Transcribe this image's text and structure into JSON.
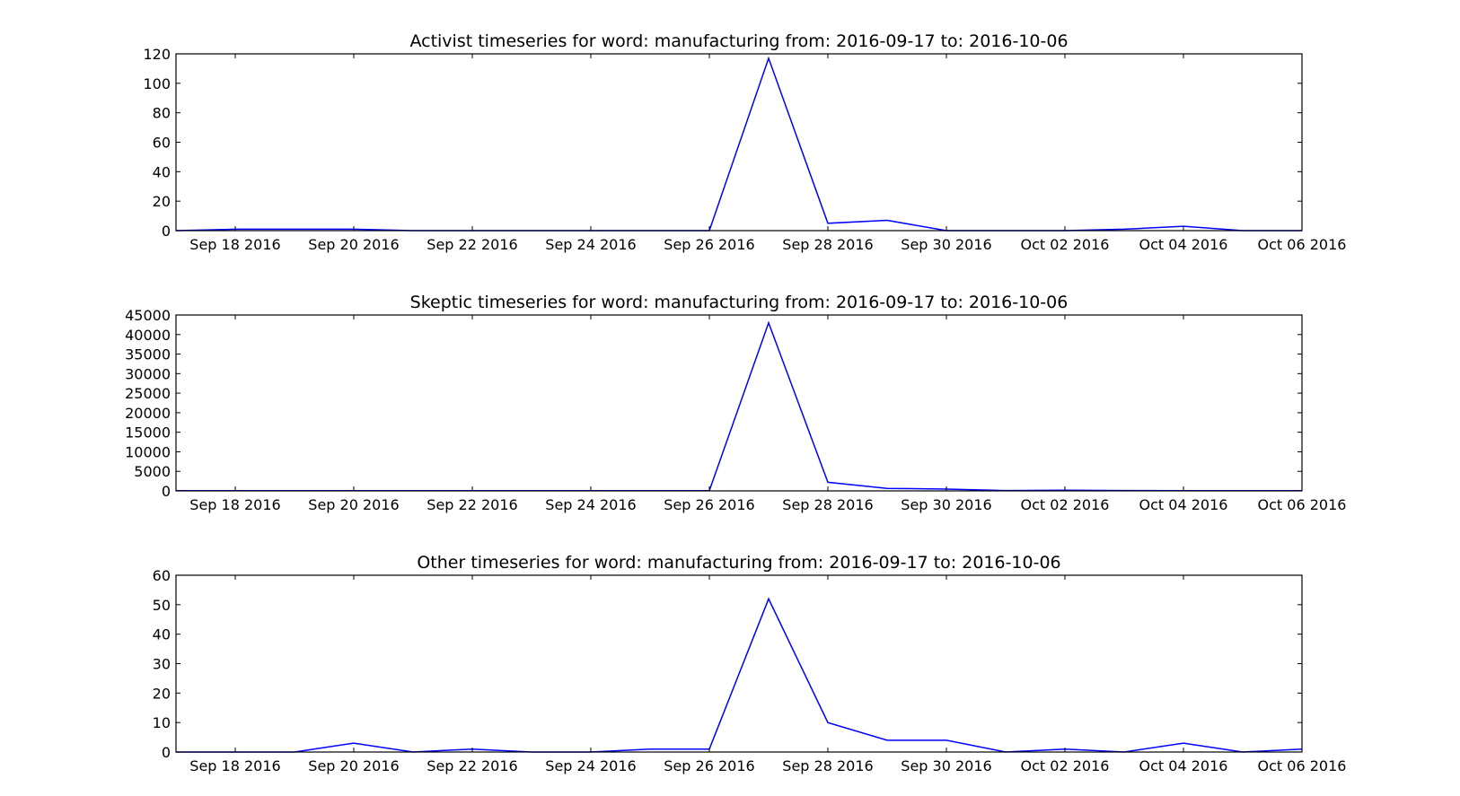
{
  "chart_data": [
    {
      "type": "line",
      "title": "Activist timeseries for word: manufacturing from: 2016-09-17 to: 2016-10-06",
      "xlabel": "",
      "ylabel": "",
      "x_range": [
        "2016-09-17",
        "2016-10-06"
      ],
      "x_ticks": [
        "2016-09-18",
        "2016-09-20",
        "2016-09-22",
        "2016-09-24",
        "2016-09-26",
        "2016-09-28",
        "2016-09-30",
        "2016-10-02",
        "2016-10-04",
        "2016-10-06"
      ],
      "x_tick_labels": [
        "Sep 18 2016",
        "Sep 20 2016",
        "Sep 22 2016",
        "Sep 24 2016",
        "Sep 26 2016",
        "Sep 28 2016",
        "Sep 30 2016",
        "Oct 02 2016",
        "Oct 04 2016",
        "Oct 06 2016"
      ],
      "ylim": [
        0,
        120
      ],
      "y_ticks": [
        0,
        20,
        40,
        60,
        80,
        100,
        120
      ],
      "grid": false,
      "color": "#0000ff",
      "series": [
        {
          "x": [
            "2016-09-17",
            "2016-09-18",
            "2016-09-19",
            "2016-09-20",
            "2016-09-21",
            "2016-09-22",
            "2016-09-23",
            "2016-09-24",
            "2016-09-25",
            "2016-09-26",
            "2016-09-27",
            "2016-09-28",
            "2016-09-29",
            "2016-09-30",
            "2016-10-01",
            "2016-10-02",
            "2016-10-03",
            "2016-10-04",
            "2016-10-05",
            "2016-10-06"
          ],
          "values": [
            0,
            1,
            1,
            1,
            0,
            0,
            0,
            0,
            0,
            0,
            117,
            5,
            7,
            0,
            0,
            0,
            1,
            3,
            0,
            0
          ]
        }
      ]
    },
    {
      "type": "line",
      "title": "Skeptic timeseries for word: manufacturing from: 2016-09-17 to: 2016-10-06",
      "xlabel": "",
      "ylabel": "",
      "x_range": [
        "2016-09-17",
        "2016-10-06"
      ],
      "x_ticks": [
        "2016-09-18",
        "2016-09-20",
        "2016-09-22",
        "2016-09-24",
        "2016-09-26",
        "2016-09-28",
        "2016-09-30",
        "2016-10-02",
        "2016-10-04",
        "2016-10-06"
      ],
      "x_tick_labels": [
        "Sep 18 2016",
        "Sep 20 2016",
        "Sep 22 2016",
        "Sep 24 2016",
        "Sep 26 2016",
        "Sep 28 2016",
        "Sep 30 2016",
        "Oct 02 2016",
        "Oct 04 2016",
        "Oct 06 2016"
      ],
      "ylim": [
        0,
        45000
      ],
      "y_ticks": [
        0,
        5000,
        10000,
        15000,
        20000,
        25000,
        30000,
        35000,
        40000,
        45000
      ],
      "grid": false,
      "color": "#0000ff",
      "series": [
        {
          "x": [
            "2016-09-17",
            "2016-09-18",
            "2016-09-19",
            "2016-09-20",
            "2016-09-21",
            "2016-09-22",
            "2016-09-23",
            "2016-09-24",
            "2016-09-25",
            "2016-09-26",
            "2016-09-27",
            "2016-09-28",
            "2016-09-29",
            "2016-09-30",
            "2016-10-01",
            "2016-10-02",
            "2016-10-03",
            "2016-10-04",
            "2016-10-05",
            "2016-10-06"
          ],
          "values": [
            50,
            40,
            40,
            40,
            40,
            40,
            40,
            40,
            40,
            40,
            43000,
            2200,
            650,
            450,
            100,
            150,
            100,
            80,
            50,
            40
          ]
        }
      ]
    },
    {
      "type": "line",
      "title": "Other timeseries for word: manufacturing from: 2016-09-17 to: 2016-10-06",
      "xlabel": "",
      "ylabel": "",
      "x_range": [
        "2016-09-17",
        "2016-10-06"
      ],
      "x_ticks": [
        "2016-09-18",
        "2016-09-20",
        "2016-09-22",
        "2016-09-24",
        "2016-09-26",
        "2016-09-28",
        "2016-09-30",
        "2016-10-02",
        "2016-10-04",
        "2016-10-06"
      ],
      "x_tick_labels": [
        "Sep 18 2016",
        "Sep 20 2016",
        "Sep 22 2016",
        "Sep 24 2016",
        "Sep 26 2016",
        "Sep 28 2016",
        "Sep 30 2016",
        "Oct 02 2016",
        "Oct 04 2016",
        "Oct 06 2016"
      ],
      "ylim": [
        0,
        60
      ],
      "y_ticks": [
        0,
        10,
        20,
        30,
        40,
        50,
        60
      ],
      "grid": false,
      "color": "#0000ff",
      "series": [
        {
          "x": [
            "2016-09-17",
            "2016-09-18",
            "2016-09-19",
            "2016-09-20",
            "2016-09-21",
            "2016-09-22",
            "2016-09-23",
            "2016-09-24",
            "2016-09-25",
            "2016-09-26",
            "2016-09-27",
            "2016-09-28",
            "2016-09-29",
            "2016-09-30",
            "2016-10-01",
            "2016-10-02",
            "2016-10-03",
            "2016-10-04",
            "2016-10-05",
            "2016-10-06"
          ],
          "values": [
            0,
            0,
            0,
            3,
            0,
            1,
            0,
            0,
            1,
            1,
            52,
            10,
            4,
            4,
            0,
            1,
            0,
            3,
            0,
            1
          ]
        }
      ]
    }
  ]
}
